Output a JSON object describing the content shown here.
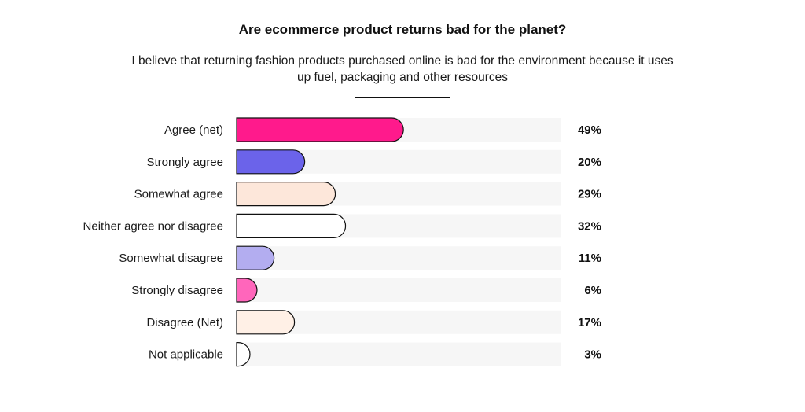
{
  "chart_data": {
    "type": "bar",
    "orientation": "horizontal",
    "title": "Are ecommerce product returns bad for the planet?",
    "subtitle": "I believe that returning fashion products purchased online is bad for the environment because it uses up fuel, packaging and other resources",
    "categories": [
      "Agree (net)",
      "Strongly agree",
      "Somewhat agree",
      "Neither agree nor disagree",
      "Somewhat disagree",
      "Strongly disagree",
      "Disagree (Net)",
      "Not applicable"
    ],
    "values": [
      49,
      20,
      29,
      32,
      11,
      6,
      17,
      3
    ],
    "value_labels": [
      "49%",
      "20%",
      "29%",
      "32%",
      "11%",
      "6%",
      "17%",
      "3%"
    ],
    "colors": [
      "#ff1a8c",
      "#6b63ea",
      "#fde7da",
      "#ffffff",
      "#b3adf0",
      "#ff66bb",
      "#fff0e6",
      "#ffffff"
    ],
    "track_color": "#f6f6f6",
    "xlim": [
      0,
      100
    ],
    "grid": false,
    "legend": "none"
  }
}
